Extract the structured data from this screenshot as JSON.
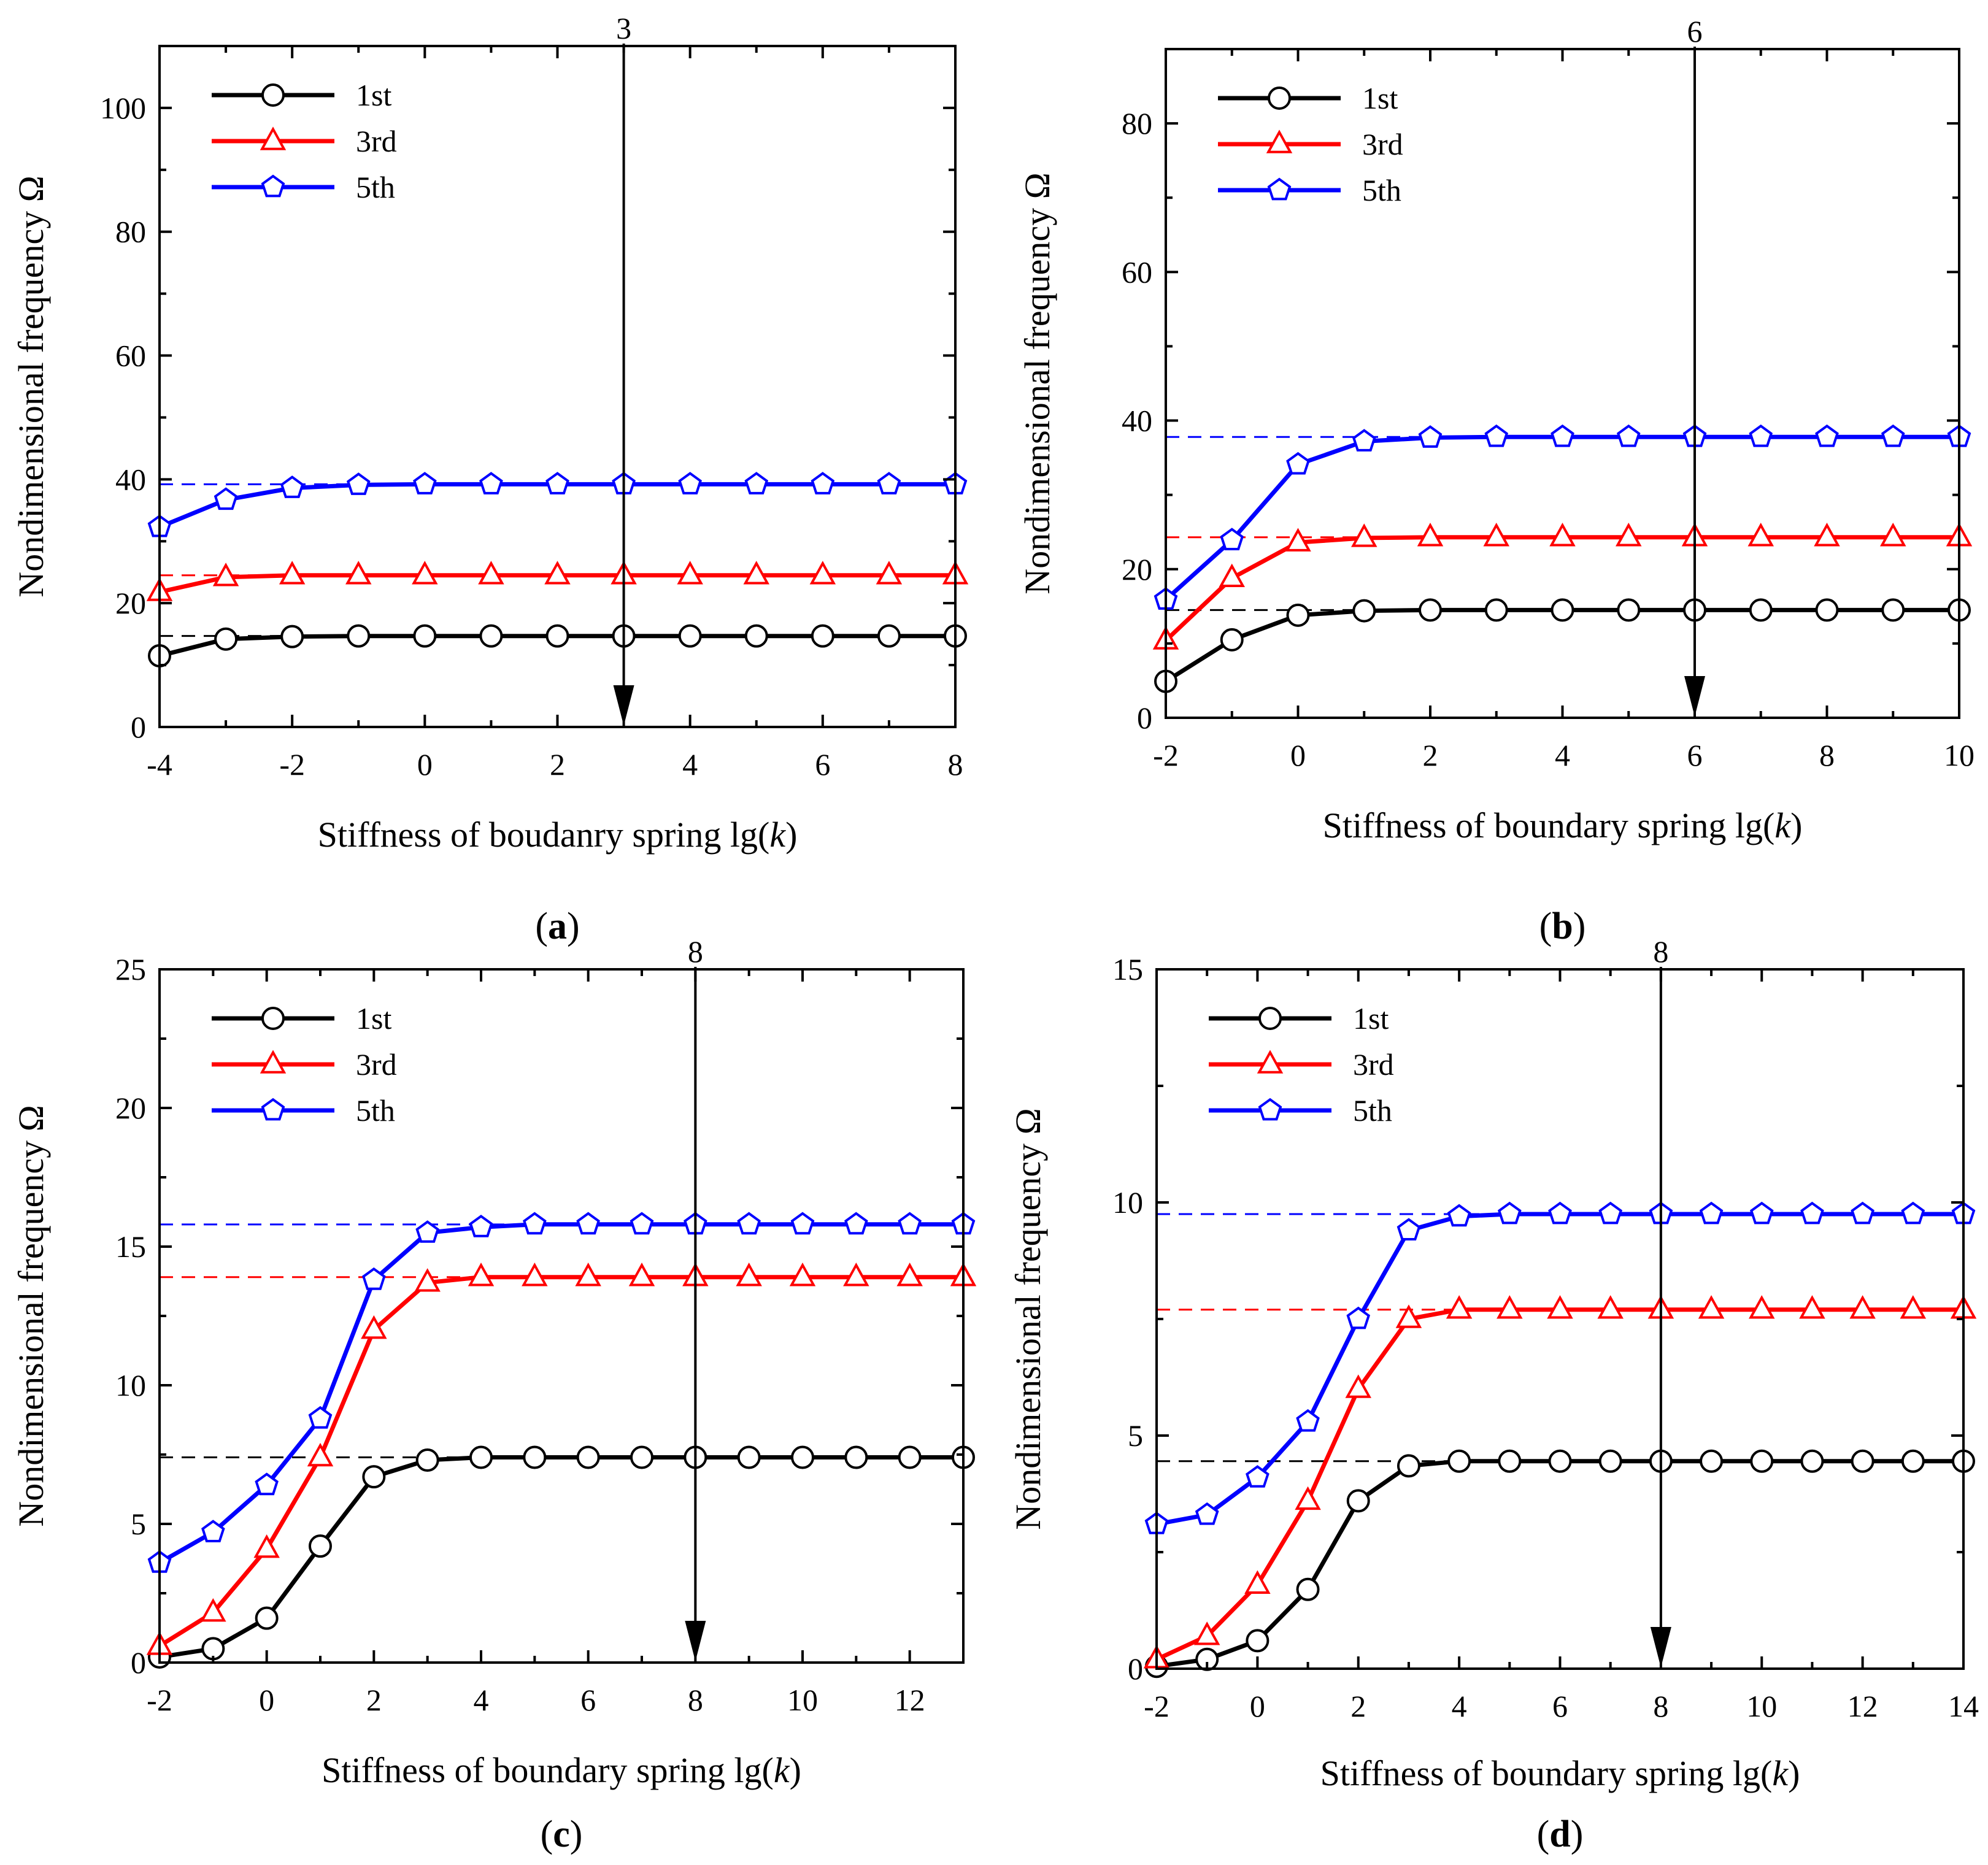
{
  "figure": {
    "panel_labels": [
      "(a)",
      "(b)",
      "(c)",
      "(d)"
    ]
  },
  "colors": {
    "first": "#000000",
    "third": "#ff0000",
    "fifth": "#0000ff",
    "frame": "#000000"
  },
  "chart_data": [
    {
      "type": "line",
      "panel": "a",
      "panel_letter": "a",
      "xlabel_prefix": "Stiffness of boudanry spring lg(",
      "xlabel_var": "k",
      "xlabel_suffix": ")",
      "ylabel": "Nondimensional frequency Ω",
      "xlim": [
        -4,
        8
      ],
      "ylim": [
        0,
        110
      ],
      "xticks": [
        -4,
        -2,
        0,
        2,
        4,
        6,
        8
      ],
      "yticks": [
        0,
        20,
        40,
        60,
        80,
        100
      ],
      "x": [
        -4,
        -3,
        -2,
        -1,
        0,
        1,
        2,
        3,
        4,
        5,
        6,
        7,
        8
      ],
      "series": [
        {
          "name": "1st",
          "marker": "circle",
          "values": [
            11.5,
            14.2,
            14.6,
            14.7,
            14.7,
            14.7,
            14.7,
            14.7,
            14.7,
            14.7,
            14.7,
            14.7,
            14.7
          ],
          "asymptote": 14.7
        },
        {
          "name": "3rd",
          "marker": "triangle",
          "values": [
            21.8,
            24.2,
            24.5,
            24.5,
            24.5,
            24.5,
            24.5,
            24.5,
            24.5,
            24.5,
            24.5,
            24.5,
            24.5
          ],
          "asymptote": 24.5
        },
        {
          "name": "5th",
          "marker": "pentagon",
          "values": [
            32.3,
            36.7,
            38.6,
            39.1,
            39.2,
            39.2,
            39.2,
            39.2,
            39.2,
            39.2,
            39.2,
            39.2,
            39.2
          ],
          "asymptote": 39.2
        }
      ],
      "arrow": {
        "x": 3,
        "label": "3"
      },
      "legend": "top-left"
    },
    {
      "type": "line",
      "panel": "b",
      "panel_letter": "b",
      "xlabel_prefix": "Stiffness of boundary spring lg(",
      "xlabel_var": "k",
      "xlabel_suffix": ")",
      "ylabel": "Nondimensional frequency Ω",
      "xlim": [
        -2,
        10
      ],
      "ylim": [
        0,
        90
      ],
      "xticks": [
        -2,
        0,
        2,
        4,
        6,
        8,
        10
      ],
      "yticks": [
        0,
        20,
        40,
        60,
        80
      ],
      "x": [
        -2,
        -1,
        0,
        1,
        2,
        3,
        4,
        5,
        6,
        7,
        8,
        9,
        10
      ],
      "series": [
        {
          "name": "1st",
          "marker": "circle",
          "values": [
            4.9,
            10.5,
            13.8,
            14.4,
            14.5,
            14.5,
            14.5,
            14.5,
            14.5,
            14.5,
            14.5,
            14.5,
            14.5
          ],
          "asymptote": 14.5
        },
        {
          "name": "3rd",
          "marker": "triangle",
          "values": [
            10.4,
            18.8,
            23.6,
            24.2,
            24.3,
            24.3,
            24.3,
            24.3,
            24.3,
            24.3,
            24.3,
            24.3,
            24.3
          ],
          "asymptote": 24.3
        },
        {
          "name": "5th",
          "marker": "pentagon",
          "values": [
            15.9,
            23.9,
            34.1,
            37.2,
            37.7,
            37.8,
            37.8,
            37.8,
            37.8,
            37.8,
            37.8,
            37.8,
            37.8
          ],
          "asymptote": 37.8
        }
      ],
      "arrow": {
        "x": 6,
        "label": "6"
      },
      "legend": "top-left"
    },
    {
      "type": "line",
      "panel": "c",
      "panel_letter": "c",
      "xlabel_prefix": "Stiffness of boundary spring lg(",
      "xlabel_var": "k",
      "xlabel_suffix": ")",
      "ylabel": "Nondimensional frequency Ω",
      "xlim": [
        -2,
        13
      ],
      "ylim": [
        0,
        25
      ],
      "xticks": [
        -2,
        0,
        2,
        4,
        6,
        8,
        10,
        12
      ],
      "yticks": [
        0,
        5,
        10,
        15,
        20,
        25
      ],
      "x": [
        -2,
        -1,
        0,
        1,
        2,
        3,
        4,
        5,
        6,
        7,
        8,
        9,
        10,
        11,
        12,
        13
      ],
      "series": [
        {
          "name": "1st",
          "marker": "circle",
          "values": [
            0.2,
            0.5,
            1.6,
            4.2,
            6.7,
            7.3,
            7.4,
            7.4,
            7.4,
            7.4,
            7.4,
            7.4,
            7.4,
            7.4,
            7.4,
            7.4
          ],
          "asymptote": 7.4
        },
        {
          "name": "3rd",
          "marker": "triangle",
          "values": [
            0.6,
            1.8,
            4.1,
            7.4,
            12.0,
            13.7,
            13.9,
            13.9,
            13.9,
            13.9,
            13.9,
            13.9,
            13.9,
            13.9,
            13.9,
            13.9
          ],
          "asymptote": 13.9
        },
        {
          "name": "5th",
          "marker": "pentagon",
          "values": [
            3.6,
            4.7,
            6.4,
            8.8,
            13.8,
            15.5,
            15.7,
            15.8,
            15.8,
            15.8,
            15.8,
            15.8,
            15.8,
            15.8,
            15.8,
            15.8
          ],
          "asymptote": 15.8
        }
      ],
      "arrow": {
        "x": 8,
        "label": "8"
      },
      "legend": "top-left"
    },
    {
      "type": "line",
      "panel": "d",
      "panel_letter": "d",
      "xlabel_prefix": "Stiffness of boundary spring lg(",
      "xlabel_var": "k",
      "xlabel_suffix": ")",
      "ylabel": "Nondimensional frequency Ω",
      "xlim": [
        -2,
        14
      ],
      "ylim": [
        0,
        15
      ],
      "xticks": [
        -2,
        0,
        2,
        4,
        6,
        8,
        10,
        12,
        14
      ],
      "yticks": [
        0,
        5,
        10,
        15
      ],
      "x": [
        -2,
        -1,
        0,
        1,
        2,
        3,
        4,
        5,
        6,
        7,
        8,
        9,
        10,
        11,
        12,
        13,
        14
      ],
      "series": [
        {
          "name": "1st",
          "marker": "circle",
          "values": [
            0.05,
            0.2,
            0.6,
            1.7,
            3.6,
            4.35,
            4.45,
            4.45,
            4.45,
            4.45,
            4.45,
            4.45,
            4.45,
            4.45,
            4.45,
            4.45,
            4.45
          ],
          "asymptote": 4.45
        },
        {
          "name": "3rd",
          "marker": "triangle",
          "values": [
            0.2,
            0.7,
            1.8,
            3.6,
            6.0,
            7.5,
            7.7,
            7.7,
            7.7,
            7.7,
            7.7,
            7.7,
            7.7,
            7.7,
            7.7,
            7.7,
            7.7
          ],
          "asymptote": 7.7
        },
        {
          "name": "5th",
          "marker": "pentagon",
          "values": [
            3.1,
            3.3,
            4.1,
            5.3,
            7.5,
            9.4,
            9.7,
            9.75,
            9.75,
            9.75,
            9.75,
            9.75,
            9.75,
            9.75,
            9.75,
            9.75,
            9.75
          ],
          "asymptote": 9.75
        }
      ],
      "arrow": {
        "x": 8,
        "label": "8"
      },
      "legend": "top-left"
    }
  ]
}
